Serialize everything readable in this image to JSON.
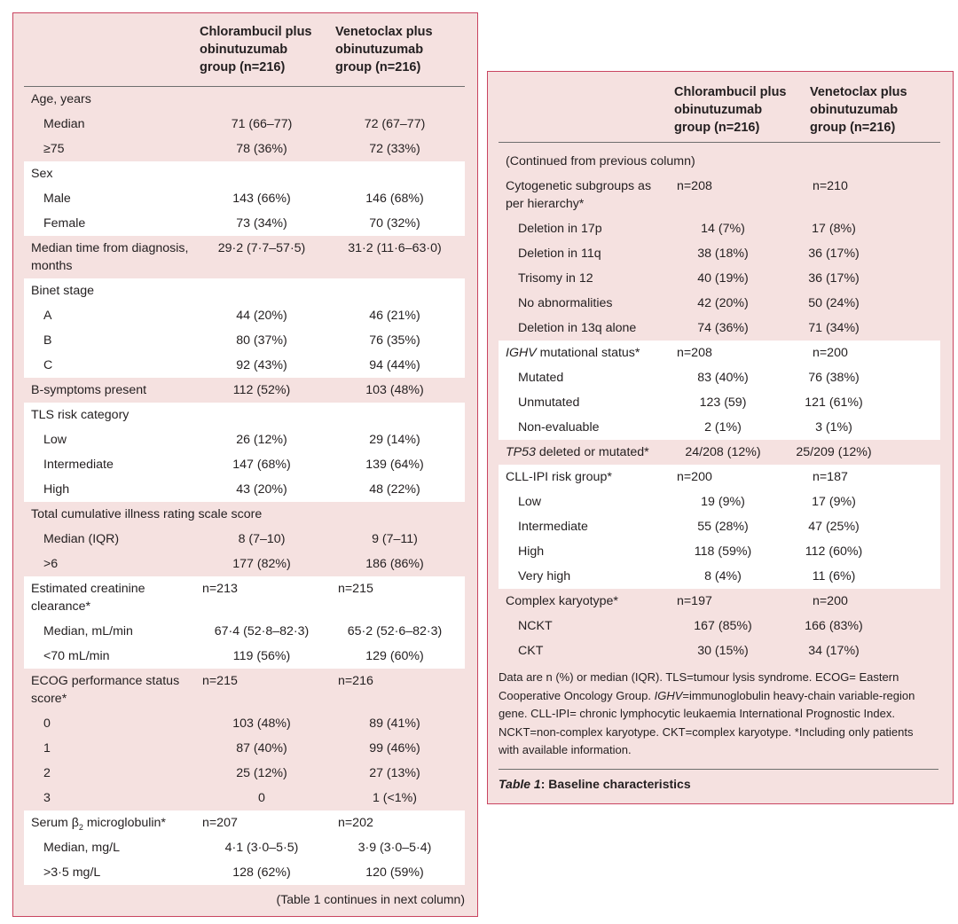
{
  "columns": {
    "col1": "Chlorambucil plus obinutuzumab group (n=216)",
    "col2": "Venetoclax plus obinutuzumab group (n=216)",
    "col1_lines": [
      "Chlorambucil plus",
      "obinutuzumab",
      "group (n=216)"
    ],
    "col2_lines": [
      "Venetoclax plus",
      "obinutuzumab",
      "group (n=216)"
    ]
  },
  "left": {
    "groups": [
      {
        "rows": [
          {
            "label": "Age, years"
          },
          {
            "label": "Median",
            "a": "71 (66–77)",
            "b": "72 (67–77)",
            "ind": 1
          },
          {
            "label": "≥75",
            "a": "78 (36%)",
            "b": "72 (33%)",
            "ind": 1
          }
        ]
      },
      {
        "rows": [
          {
            "label": "Sex"
          },
          {
            "label": "Male",
            "a": "143 (66%)",
            "b": "146 (68%)",
            "ind": 1
          },
          {
            "label": "Female",
            "a": "73 (34%)",
            "b": "70 (32%)",
            "ind": 1
          }
        ]
      },
      {
        "rows": [
          {
            "label": "Median time from diagnosis, months",
            "a": "29·2 (7·7–57·5)",
            "b": "31·2 (11·6–63·0)",
            "h": 48
          }
        ]
      },
      {
        "rows": [
          {
            "label": "Binet stage"
          },
          {
            "label": "A",
            "a": "44 (20%)",
            "b": "46 (21%)",
            "ind": 1
          },
          {
            "label": "B",
            "a": "80 (37%)",
            "b": "76 (35%)",
            "ind": 1
          },
          {
            "label": "C",
            "a": "92 (43%)",
            "b": "94 (44%)",
            "ind": 1
          }
        ]
      },
      {
        "rows": [
          {
            "label": "B-symptoms present",
            "a": "112 (52%)",
            "b": "103 (48%)"
          }
        ]
      },
      {
        "rows": [
          {
            "label": "TLS risk category"
          },
          {
            "label": "Low",
            "a": "26 (12%)",
            "b": "29 (14%)",
            "ind": 1
          },
          {
            "label": "Intermediate",
            "a": "147 (68%)",
            "b": "139 (64%)",
            "ind": 1
          },
          {
            "label": "High",
            "a": "43 (20%)",
            "b": "48 (22%)",
            "ind": 1
          }
        ]
      },
      {
        "rows": [
          {
            "label": "Total cumulative illness rating scale score",
            "wide": 1
          },
          {
            "label": "Median (IQR)",
            "a": "8 (7–10)",
            "b": "9 (7–11)",
            "ind": 1
          },
          {
            "label": ">6",
            "a": "177 (82%)",
            "b": "186 (86%)",
            "ind": 1
          }
        ]
      },
      {
        "rows": [
          {
            "label": "Estimated creatinine clearance*",
            "a": "n=213",
            "b": "n=215",
            "h": 48,
            "lft": 1
          },
          {
            "label": "Median, mL/min",
            "a": "67·4 (52·8–82·3)",
            "b": "65·2 (52·6–82·3)",
            "ind": 1
          },
          {
            "label": "<70 mL/min",
            "a": "119 (56%)",
            "b": "129 (60%)",
            "ind": 1
          }
        ]
      },
      {
        "rows": [
          {
            "label": "ECOG performance status score*",
            "a": "n=215",
            "b": "n=216",
            "h": 48,
            "lft": 1
          },
          {
            "label": "0",
            "a": "103 (48%)",
            "b": "89 (41%)",
            "ind": 1
          },
          {
            "label": "1",
            "a": "87 (40%)",
            "b": "99 (46%)",
            "ind": 1
          },
          {
            "label": "2",
            "a": "25 (12%)",
            "b": "27 (13%)",
            "ind": 1
          },
          {
            "label": "3",
            "a": "0",
            "b": "1 (<1%)",
            "ind": 1
          }
        ]
      },
      {
        "rows": [
          {
            "label": "Serum β",
            "sub": "2",
            "rest": " microglobulin*",
            "a": "n=207",
            "b": "n=202",
            "lft": 1
          },
          {
            "label": "Median, mg/L",
            "a": "4·1 (3·0–5·5)",
            "b": "3·9 (3·0–5·4)",
            "ind": 1
          },
          {
            "label": ">3·5 mg/L",
            "a": "128 (62%)",
            "b": "120 (59%)",
            "ind": 1
          }
        ]
      }
    ],
    "continues": "(Table 1 continues in next column)"
  },
  "right": {
    "groups": [
      {
        "rows": [
          {
            "label": "(Continued from previous column)",
            "wide": 1,
            "h": 35,
            "pt": 11
          },
          {
            "label": "Cytogenetic subgroups as per hierarchy*",
            "a": "n=208",
            "b": "n=210",
            "h": 48,
            "lft": 1
          },
          {
            "label": "Deletion in 17p",
            "a": "14 (7%)",
            "b": "17 (8%)",
            "ind": 1
          },
          {
            "label": "Deletion in 11q",
            "a": "38 (18%)",
            "b": "36 (17%)",
            "ind": 1
          },
          {
            "label": "Trisomy in 12",
            "a": "40 (19%)",
            "b": "36 (17%)",
            "ind": 1
          },
          {
            "label": "No abnormalities",
            "a": "42 (20%)",
            "b": "50 (24%)",
            "ind": 1
          },
          {
            "label": "Deletion in 13q alone",
            "a": "74 (36%)",
            "b": "71 (34%)",
            "ind": 1
          }
        ]
      },
      {
        "rows": [
          {
            "it": "IGHV",
            "label": " mutational status*",
            "a": "n=208",
            "b": "n=200",
            "lft": 1
          },
          {
            "label": "Mutated",
            "a": "83 (40%)",
            "b": "76 (38%)",
            "ind": 1
          },
          {
            "label": "Unmutated",
            "a": "123 (59)",
            "b": "121 (61%)",
            "ind": 1
          },
          {
            "label": "Non-evaluable",
            "a": "2 (1%)",
            "b": "3 (1%)",
            "ind": 1
          }
        ]
      },
      {
        "rows": [
          {
            "it": "TP53",
            "label": " deleted or mutated*",
            "a": "24/208 (12%)",
            "b": "25/209 (12%)"
          }
        ]
      },
      {
        "rows": [
          {
            "label": "CLL-IPI risk group*",
            "a": "n=200",
            "b": "n=187",
            "lft": 1
          },
          {
            "label": "Low",
            "a": "19 (9%)",
            "b": "17 (9%)",
            "ind": 1
          },
          {
            "label": "Intermediate",
            "a": "55 (28%)",
            "b": "47 (25%)",
            "ind": 1
          },
          {
            "label": "High",
            "a": "118 (59%)",
            "b": "112 (60%)",
            "ind": 1
          },
          {
            "label": "Very high",
            "a": "8 (4%)",
            "b": "11 (6%)",
            "ind": 1
          }
        ]
      },
      {
        "rows": [
          {
            "label": "Complex karyotype*",
            "a": "n=197",
            "b": "n=200",
            "lft": 1
          },
          {
            "label": "NCKT",
            "a": "167 (85%)",
            "b": "166 (83%)",
            "ind": 1
          },
          {
            "label": "CKT",
            "a": "30 (15%)",
            "b": "34 (17%)",
            "ind": 1
          }
        ]
      }
    ],
    "footnote": {
      "p1": "Data are n (%) or median (IQR). TLS=tumour lysis syndrome. ECOG= Eastern Cooperative Oncology Group. ",
      "it": "IGHV",
      "p2": "=immunoglobulin heavy-chain variable-region gene. CLL-IPI= chronic lymphocytic leukaemia International Prognostic Index. NCKT=non-complex karyotype. CKT=complex karyotype. *Including only patients with available information."
    },
    "caption": {
      "it": "Table 1",
      "rest": ": Baseline characteristics"
    }
  }
}
